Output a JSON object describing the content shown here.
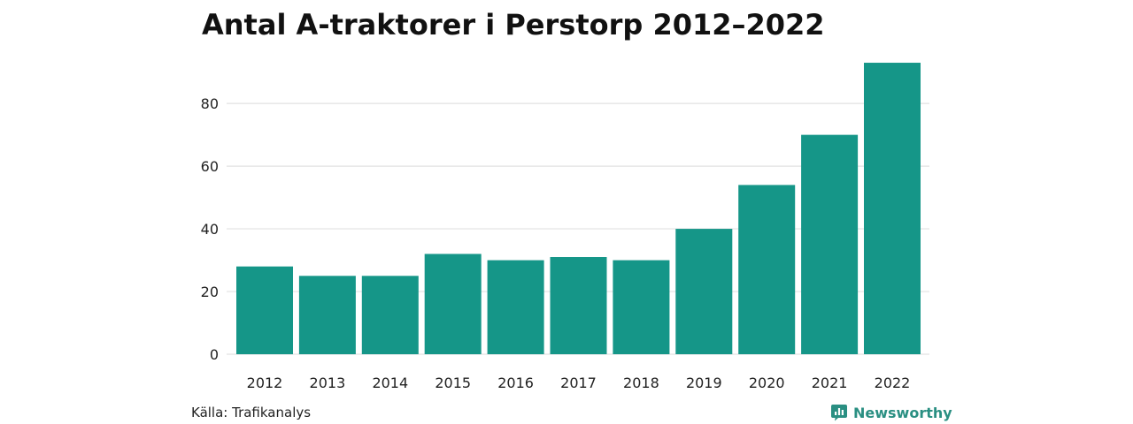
{
  "colors": {
    "bar": "#159688",
    "grid": "#e2e2e2",
    "brand": "#2a8f82"
  },
  "footer": {
    "source": "Källa: Trafikanalys",
    "brand": "Newsworthy",
    "brand_icon": "chart-speech-bubble-icon"
  },
  "chart_data": {
    "type": "bar",
    "title": "Antal A-traktorer i Perstorp 2012–2022",
    "xlabel": "",
    "ylabel": "",
    "categories": [
      "2012",
      "2013",
      "2014",
      "2015",
      "2016",
      "2017",
      "2018",
      "2019",
      "2020",
      "2021",
      "2022"
    ],
    "values": [
      28,
      25,
      25,
      32,
      30,
      31,
      30,
      40,
      54,
      70,
      93
    ],
    "ylim": [
      0,
      93
    ],
    "yticks": [
      0,
      20,
      40,
      60,
      80
    ],
    "grid": true,
    "legend": "none"
  }
}
